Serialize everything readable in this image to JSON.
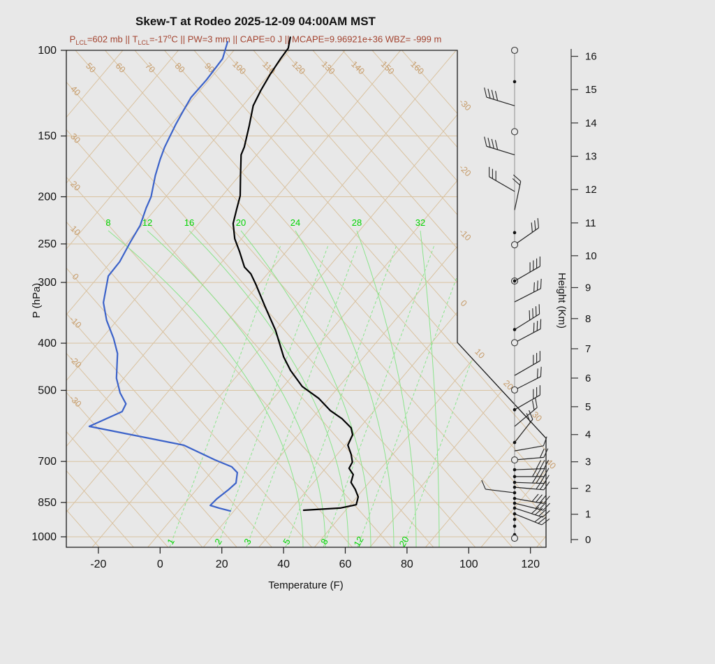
{
  "chart_data": {
    "type": "skewt-log-p sounding",
    "title": "Skew-T at Rodeo 2025-12-09 04:00AM MST",
    "annotation": {
      "P_LCL": "602 mb",
      "T_LCL": "-17 C",
      "PW": "3 mm",
      "CAPE": "0 J",
      "MCAPE": "9.96921e+36",
      "WBZ": "-999 m"
    },
    "annotation_segments": [
      {
        "text": "P"
      },
      {
        "text": "LCL",
        "style": "sub"
      },
      {
        "text": "=602 mb || T"
      },
      {
        "text": "LCL",
        "style": "sub"
      },
      {
        "text": "=-17"
      },
      {
        "text": "o",
        "style": "sup"
      },
      {
        "text": "C || PW=3 mm || CAPE=0 J || MCAPE=9.96921e+36 WBZ= -999 m"
      }
    ],
    "annotation_color": "#a34430",
    "axes": {
      "x": {
        "label": "Temperature (F)",
        "ticks": [
          -20,
          0,
          20,
          40,
          60,
          80,
          100,
          120
        ]
      },
      "pressure": {
        "label": "P (hPa)",
        "ticks": [
          100,
          150,
          200,
          250,
          300,
          400,
          500,
          700,
          850,
          1000
        ],
        "scale": "log",
        "top_hpa": 100,
        "bottom_hpa": 1052
      },
      "height": {
        "label": "Height (Km)",
        "ticks": [
          0,
          1,
          2,
          3,
          4,
          5,
          6,
          7,
          8,
          9,
          10,
          11,
          12,
          13,
          14,
          15,
          16
        ]
      }
    },
    "background_lines": {
      "line_color_tan": "#d9c2a0",
      "label_color_tan": "#c69c6b",
      "line_color_green": "#8be48b",
      "label_color_green": "#00d400",
      "dry_adiabats_c_top_labels": [
        50,
        60,
        70,
        80,
        90,
        100,
        110,
        120,
        130,
        140,
        150,
        160
      ],
      "dry_adiabats_c_left_labels": [
        40,
        30,
        20,
        10,
        0,
        -10,
        -20,
        -30
      ],
      "isotherms_c_right_labels": [
        -30,
        -20,
        -10,
        0
      ],
      "isotherms_c_diagonal_labels": [
        10,
        20,
        30,
        40
      ],
      "moist_adiabat_labels": [
        8,
        12,
        16,
        20,
        24,
        28,
        32
      ],
      "mixing_ratio_gkg_labels": [
        1,
        2,
        3,
        5,
        8,
        12,
        20
      ]
    },
    "series": {
      "temperature_f": {
        "name": "Temperature",
        "color": "#000000",
        "points_p_t": [
          [
            94,
            -97.3
          ],
          [
            99,
            -95.0
          ],
          [
            104,
            -94.6
          ],
          [
            112,
            -93.7
          ],
          [
            121,
            -92.3
          ],
          [
            130,
            -90.6
          ],
          [
            143,
            -86.4
          ],
          [
            158,
            -82.2
          ],
          [
            164,
            -81.1
          ],
          [
            180,
            -75.9
          ],
          [
            199,
            -70.2
          ],
          [
            213,
            -67.5
          ],
          [
            227,
            -64.9
          ],
          [
            244,
            -60.2
          ],
          [
            259,
            -55.2
          ],
          [
            279,
            -49.3
          ],
          [
            288,
            -45.4
          ],
          [
            302,
            -41.1
          ],
          [
            336,
            -31.9
          ],
          [
            377,
            -21.8
          ],
          [
            427,
            -12.0
          ],
          [
            455,
            -6.1
          ],
          [
            491,
            2.1
          ],
          [
            519,
            10.6
          ],
          [
            550,
            17.7
          ],
          [
            572,
            23.8
          ],
          [
            597,
            29.2
          ],
          [
            617,
            31.6
          ],
          [
            648,
            32.9
          ],
          [
            677,
            36.5
          ],
          [
            702,
            39.0
          ],
          [
            723,
            39.6
          ],
          [
            745,
            42.7
          ],
          [
            773,
            44.1
          ],
          [
            799,
            47.4
          ],
          [
            828,
            50.4
          ],
          [
            859,
            51.9
          ],
          [
            873,
            47.6
          ],
          [
            879,
            40.0
          ],
          [
            882,
            36.4
          ]
        ]
      },
      "dewpoint_f": {
        "name": "Dewpoint",
        "color": "#3b62c9",
        "points_p_t": [
          [
            96,
            -116.4
          ],
          [
            104,
            -113.4
          ],
          [
            115,
            -112.8
          ],
          [
            125,
            -113.0
          ],
          [
            133,
            -111.9
          ],
          [
            142,
            -110.6
          ],
          [
            158,
            -108.0
          ],
          [
            168,
            -106.0
          ],
          [
            181,
            -103.2
          ],
          [
            200,
            -98.8
          ],
          [
            211,
            -97.3
          ],
          [
            229,
            -94.5
          ],
          [
            248,
            -93.1
          ],
          [
            272,
            -91.2
          ],
          [
            291,
            -91.0
          ],
          [
            330,
            -85.3
          ],
          [
            359,
            -79.4
          ],
          [
            391,
            -72.2
          ],
          [
            420,
            -66.8
          ],
          [
            472,
            -60.4
          ],
          [
            506,
            -55.2
          ],
          [
            533,
            -50.3
          ],
          [
            553,
            -49.4
          ],
          [
            593,
            -56.0
          ],
          [
            648,
            -20.3
          ],
          [
            695,
            -6.1
          ],
          [
            718,
            1.2
          ],
          [
            738,
            4.6
          ],
          [
            775,
            7.0
          ],
          [
            801,
            6.4
          ],
          [
            836,
            5.1
          ],
          [
            862,
            4.8
          ],
          [
            873,
            8.4
          ],
          [
            885,
            12.8
          ]
        ]
      }
    },
    "wind_barbs": {
      "description": "station column: p hPa, marker, staff angle deg (0=right, cw, null=no staff), barb tick count",
      "stations": [
        [
          100,
          "circle",
          null,
          0
        ],
        [
          116,
          "dot",
          null,
          0
        ],
        [
          130,
          "none",
          197,
          4
        ],
        [
          147,
          "circle",
          null,
          0
        ],
        [
          164,
          "none",
          197,
          4
        ],
        [
          195,
          "none",
          210,
          3
        ],
        [
          213,
          "none",
          282,
          2
        ],
        [
          237,
          "dot",
          null,
          0
        ],
        [
          251,
          "circle",
          325,
          3
        ],
        [
          298,
          "circle-dot",
          330,
          4
        ],
        [
          329,
          "none",
          333,
          3
        ],
        [
          375,
          "dot",
          328,
          4
        ],
        [
          399,
          "circle",
          332,
          3
        ],
        [
          466,
          "none",
          330,
          3
        ],
        [
          499,
          "circle",
          333,
          2
        ],
        [
          548,
          "dot",
          330,
          3
        ],
        [
          593,
          "none",
          320,
          2
        ],
        [
          640,
          "dot",
          308,
          2
        ],
        [
          666,
          "none",
          350,
          1
        ],
        [
          695,
          "circle",
          355,
          2
        ],
        [
          728,
          "dot",
          358,
          3
        ],
        [
          752,
          "dot",
          0,
          4
        ],
        [
          773,
          "dot",
          2,
          4
        ],
        [
          791,
          "dot",
          5,
          3
        ],
        [
          812,
          "dot",
          187,
          1
        ],
        [
          834,
          "dot",
          10,
          4
        ],
        [
          853,
          "dot",
          14,
          3
        ],
        [
          873,
          "dot",
          18,
          4
        ],
        [
          897,
          "dot",
          22,
          3
        ],
        [
          921,
          "dot",
          null,
          0
        ],
        [
          951,
          "dot",
          null,
          0
        ],
        [
          990,
          "dot",
          null,
          0
        ],
        [
          1007,
          "circle",
          null,
          0
        ]
      ]
    }
  }
}
